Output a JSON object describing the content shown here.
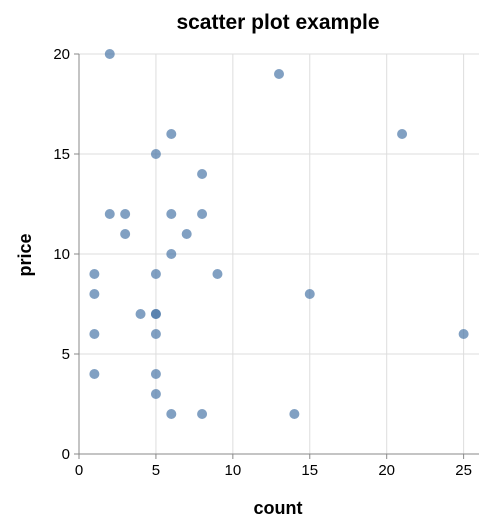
{
  "chart_data": {
    "type": "scatter",
    "title": "scatter plot example",
    "xlabel": "count",
    "ylabel": "price",
    "xlim": [
      0,
      26
    ],
    "ylim": [
      0,
      20
    ],
    "x_ticks": [
      "0",
      "5",
      "10",
      "15",
      "20",
      "25"
    ],
    "y_ticks": [
      "0",
      "5",
      "10",
      "15",
      "20"
    ],
    "grid": true,
    "point_color": "#4c78a8",
    "points": [
      {
        "x": 2,
        "y": 20
      },
      {
        "x": 13,
        "y": 19
      },
      {
        "x": 6,
        "y": 16
      },
      {
        "x": 21,
        "y": 16
      },
      {
        "x": 5,
        "y": 15
      },
      {
        "x": 8,
        "y": 14
      },
      {
        "x": 2,
        "y": 12
      },
      {
        "x": 3,
        "y": 12
      },
      {
        "x": 6,
        "y": 12
      },
      {
        "x": 8,
        "y": 12
      },
      {
        "x": 3,
        "y": 11
      },
      {
        "x": 7,
        "y": 11
      },
      {
        "x": 6,
        "y": 10
      },
      {
        "x": 1,
        "y": 9
      },
      {
        "x": 5,
        "y": 9
      },
      {
        "x": 9,
        "y": 9
      },
      {
        "x": 1,
        "y": 8
      },
      {
        "x": 15,
        "y": 8
      },
      {
        "x": 4,
        "y": 7
      },
      {
        "x": 5,
        "y": 7
      },
      {
        "x": 5,
        "y": 7
      },
      {
        "x": 1,
        "y": 6
      },
      {
        "x": 5,
        "y": 6
      },
      {
        "x": 25,
        "y": 6
      },
      {
        "x": 1,
        "y": 4
      },
      {
        "x": 5,
        "y": 4
      },
      {
        "x": 5,
        "y": 3
      },
      {
        "x": 6,
        "y": 2
      },
      {
        "x": 8,
        "y": 2
      },
      {
        "x": 14,
        "y": 2
      }
    ]
  }
}
